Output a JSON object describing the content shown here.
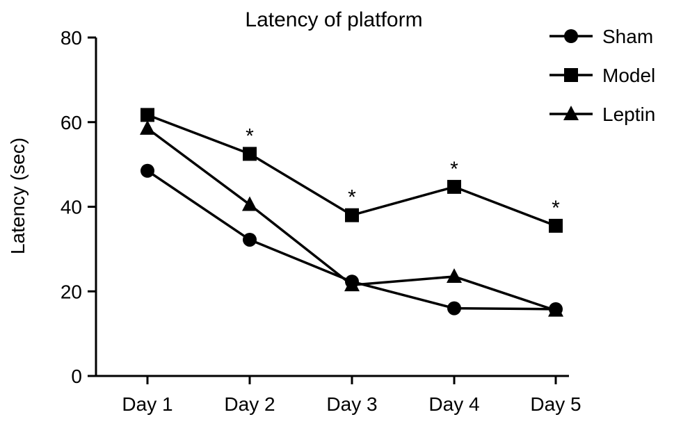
{
  "chart_data": {
    "type": "line",
    "title": "Latency of platform",
    "xlabel": "",
    "ylabel": "Latency (sec)",
    "categories": [
      "Day 1",
      "Day 2",
      "Day 3",
      "Day 4",
      "Day 5"
    ],
    "ylim": [
      0,
      80
    ],
    "yticks": [
      0,
      20,
      40,
      60,
      80
    ],
    "grid": false,
    "legend_position": "top-right",
    "series": [
      {
        "name": "Sham",
        "marker": "circle",
        "values": [
          48.5,
          32.2,
          22.3,
          16.0,
          15.8
        ]
      },
      {
        "name": "Model",
        "marker": "square",
        "values": [
          61.7,
          52.5,
          38.0,
          44.7,
          35.5
        ]
      },
      {
        "name": "Leptin",
        "marker": "triangle",
        "values": [
          58.5,
          40.5,
          21.5,
          23.5,
          15.5
        ]
      }
    ],
    "annotations": [
      {
        "text": "*",
        "category": "Day 2"
      },
      {
        "text": "*",
        "category": "Day 3"
      },
      {
        "text": "*",
        "category": "Day 4"
      },
      {
        "text": "*",
        "category": "Day 5"
      }
    ],
    "colors": {
      "line": "#000000",
      "marker": "#000000"
    }
  }
}
